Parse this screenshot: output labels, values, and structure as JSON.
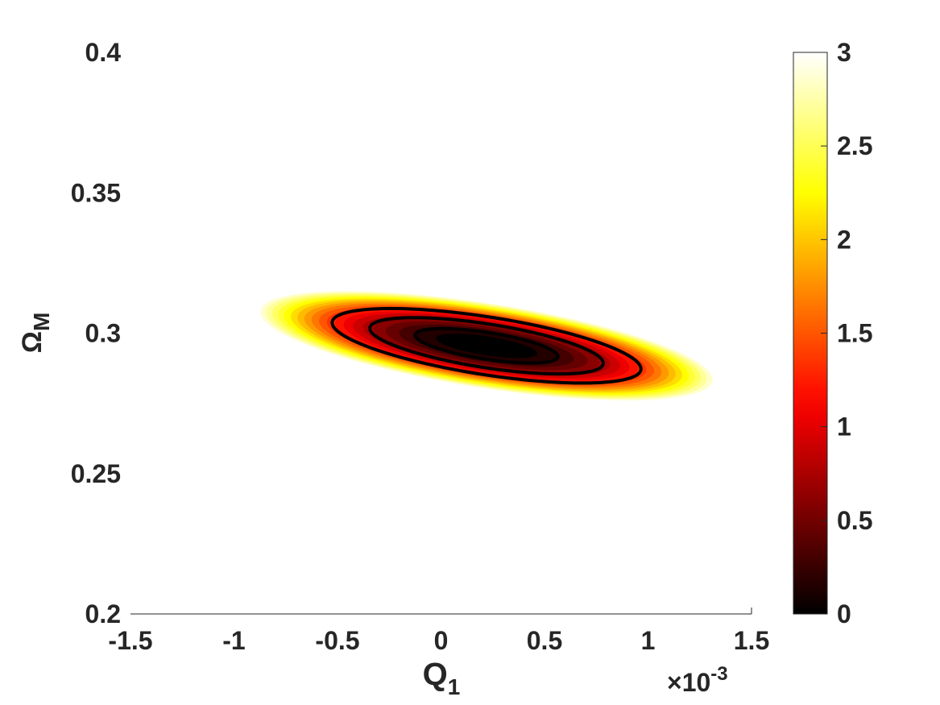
{
  "chart_data": {
    "type": "heatmap",
    "title": "",
    "xlabel": "Q",
    "xlabel_subscript": "1",
    "ylabel": "Ω",
    "ylabel_subscript": "M",
    "x_multiplier": "×10",
    "x_multiplier_exponent": "-3",
    "xlim": [
      -1.5,
      1.5
    ],
    "ylim": [
      0.2,
      0.4
    ],
    "x_ticks": [
      -1.5,
      -1,
      -0.5,
      0,
      0.5,
      1,
      1.5
    ],
    "x_tick_labels": [
      "-1.5",
      "-1",
      "-0.5",
      "0",
      "0.5",
      "1",
      "1.5"
    ],
    "y_ticks": [
      0.2,
      0.25,
      0.3,
      0.35,
      0.4
    ],
    "y_tick_labels": [
      "0.2",
      "0.25",
      "0.3",
      "0.35",
      "0.4"
    ],
    "colorbar": {
      "colormap": "hot",
      "range": [
        0,
        3
      ],
      "ticks": [
        0,
        0.5,
        1,
        1.5,
        2,
        2.5,
        3
      ],
      "tick_labels": [
        "0",
        "0.5",
        "1",
        "1.5",
        "2",
        "2.5",
        "3"
      ]
    },
    "fill": {
      "description_values": "filled contours of delta chi-square, visible for values below 3",
      "center": [
        0.22,
        0.2955
      ],
      "major_semi_axis_at_value_1": [
        0.63,
        -0.0072
      ],
      "minor_semi_axis_at_value_1": [
        -0.018,
        -0.0086
      ],
      "levels": 20
    },
    "contour_lines": {
      "values": [
        0.3,
        0.8,
        1.4
      ],
      "color": "#000000"
    },
    "grid": false
  }
}
